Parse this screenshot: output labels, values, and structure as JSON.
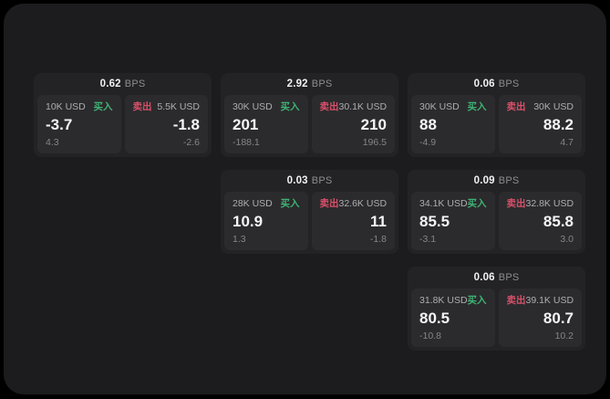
{
  "labels": {
    "buy": "买入",
    "sell": "卖出",
    "bps_unit": "BPS"
  },
  "colors": {
    "background": "#000000",
    "panel": "#1c1c1e",
    "card": "#232325",
    "subcard": "#2b2b2d",
    "buy_green": "#3fb374",
    "sell_red": "#d9506a",
    "value_white": "#f5f5f6",
    "muted_gray": "#85858a"
  },
  "cards": [
    {
      "row": 0,
      "col": 0,
      "bps": "0.62",
      "buy": {
        "notional": "10K USD",
        "price": "-3.7",
        "delta": "4.3"
      },
      "sell": {
        "notional": "5.5K USD",
        "price": "-1.8",
        "delta": "-2.6"
      }
    },
    {
      "row": 0,
      "col": 1,
      "bps": "2.92",
      "buy": {
        "notional": "30K USD",
        "price": "201",
        "delta": "-188.1"
      },
      "sell": {
        "notional": "30.1K USD",
        "price": "210",
        "delta": "196.5"
      }
    },
    {
      "row": 0,
      "col": 2,
      "bps": "0.06",
      "buy": {
        "notional": "30K USD",
        "price": "88",
        "delta": "-4.9"
      },
      "sell": {
        "notional": "30K USD",
        "price": "88.2",
        "delta": "4.7"
      }
    },
    {
      "row": 1,
      "col": 1,
      "bps": "0.03",
      "buy": {
        "notional": "28K USD",
        "price": "10.9",
        "delta": "1.3"
      },
      "sell": {
        "notional": "32.6K USD",
        "price": "11",
        "delta": "-1.8"
      }
    },
    {
      "row": 1,
      "col": 2,
      "bps": "0.09",
      "buy": {
        "notional": "34.1K USD",
        "price": "85.5",
        "delta": "-3.1"
      },
      "sell": {
        "notional": "32.8K USD",
        "price": "85.8",
        "delta": "3.0"
      }
    },
    {
      "row": 2,
      "col": 2,
      "bps": "0.06",
      "buy": {
        "notional": "31.8K USD",
        "price": "80.5",
        "delta": "-10.8"
      },
      "sell": {
        "notional": "39.1K USD",
        "price": "80.7",
        "delta": "10.2"
      }
    }
  ]
}
